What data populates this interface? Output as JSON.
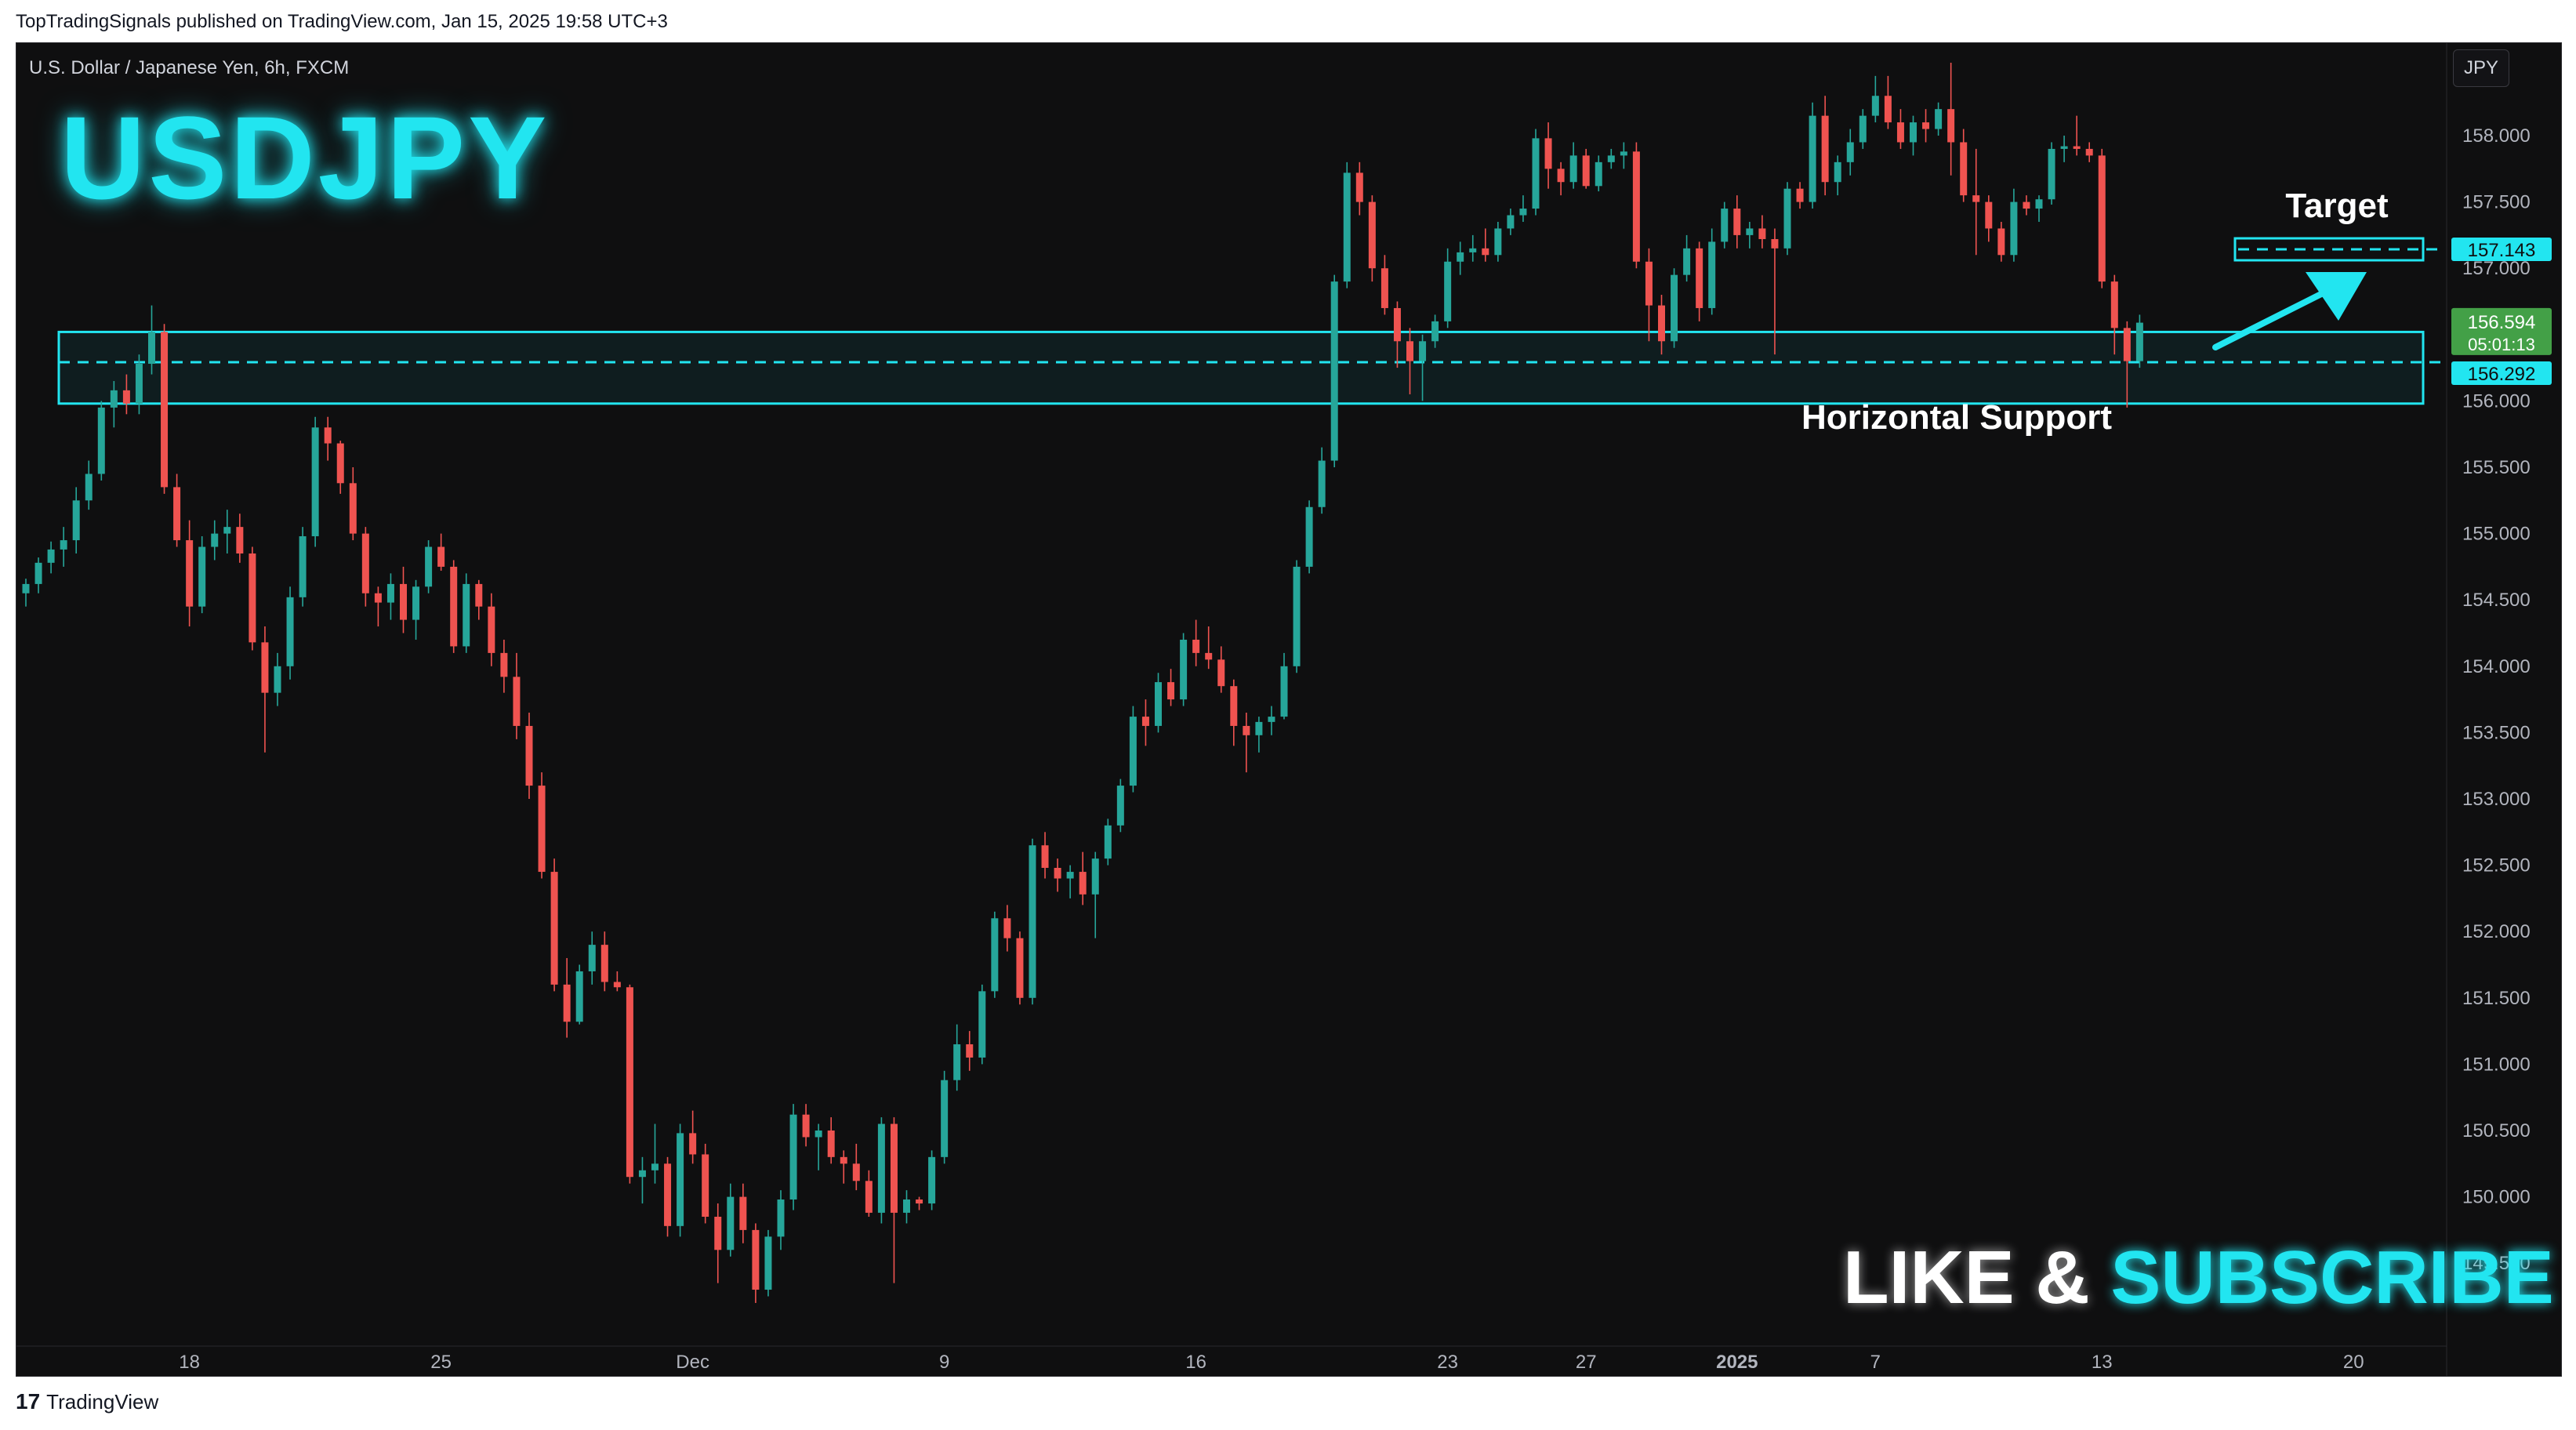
{
  "header": {
    "published_text": "TopTradingSignals published on TradingView.com, Jan 15, 2025 19:58 UTC+3"
  },
  "chart_header": {
    "symbol_line": "U.S. Dollar / Japanese Yen, 6h, FXCM",
    "currency_badge": "JPY",
    "big_title": "USDJPY"
  },
  "annotations": {
    "target_label": "Target",
    "support_label": "Horizontal Support",
    "like_text": "LIKE",
    "amp_text": "&",
    "subscribe_text": "SUBSCRIBE"
  },
  "price_tags": {
    "target_price": "157.143",
    "last_price": "156.594",
    "countdown": "05:01:13",
    "support_price": "156.292"
  },
  "footer": {
    "brand_logo": "17",
    "brand_name": "TradingView"
  },
  "colors": {
    "up": "#26a69a",
    "down": "#ef5350",
    "accent": "#22e5f0",
    "last_price_bg": "#43a047"
  },
  "chart_data": {
    "type": "candlestick",
    "symbol": "USDJPY",
    "timeframe": "6h",
    "ylim": [
      149.0,
      158.5
    ],
    "y_ticks": [
      "158.000",
      "157.500",
      "157.000",
      "156.500",
      "156.000",
      "155.500",
      "155.000",
      "154.500",
      "154.000",
      "153.500",
      "153.000",
      "152.500",
      "152.000",
      "151.500",
      "151.000",
      "150.500",
      "150.000",
      "149.500"
    ],
    "x_ticks": [
      {
        "label": "18",
        "bold": false,
        "index": 13
      },
      {
        "label": "25",
        "bold": false,
        "index": 33
      },
      {
        "label": "Dec",
        "bold": false,
        "index": 53
      },
      {
        "label": "9",
        "bold": false,
        "index": 73
      },
      {
        "label": "16",
        "bold": false,
        "index": 93
      },
      {
        "label": "23",
        "bold": false,
        "index": 113
      },
      {
        "label": "27",
        "bold": false,
        "index": 124
      },
      {
        "label": "2025",
        "bold": true,
        "index": 136
      },
      {
        "label": "7",
        "bold": false,
        "index": 147
      },
      {
        "label": "13",
        "bold": false,
        "index": 165
      },
      {
        "label": "20",
        "bold": false,
        "index": 185
      }
    ],
    "support_zone": [
      155.98,
      156.52
    ],
    "support_level": 156.292,
    "target_level": 157.143,
    "candles": [
      [
        154.55,
        154.66,
        154.45,
        154.62
      ],
      [
        154.62,
        154.82,
        154.55,
        154.78
      ],
      [
        154.78,
        154.94,
        154.7,
        154.88
      ],
      [
        154.88,
        155.05,
        154.75,
        154.95
      ],
      [
        154.95,
        155.35,
        154.85,
        155.25
      ],
      [
        155.25,
        155.55,
        155.18,
        155.45
      ],
      [
        155.45,
        156.0,
        155.4,
        155.95
      ],
      [
        155.95,
        156.15,
        155.8,
        156.08
      ],
      [
        156.08,
        156.2,
        155.9,
        155.98
      ],
      [
        155.98,
        156.35,
        155.9,
        156.28
      ],
      [
        156.28,
        156.72,
        156.2,
        156.52
      ],
      [
        156.52,
        156.58,
        155.3,
        155.35
      ],
      [
        155.35,
        155.45,
        154.9,
        154.95
      ],
      [
        154.95,
        155.1,
        154.3,
        154.45
      ],
      [
        154.45,
        154.98,
        154.4,
        154.9
      ],
      [
        154.9,
        155.1,
        154.8,
        155.0
      ],
      [
        155.0,
        155.18,
        154.85,
        155.05
      ],
      [
        155.05,
        155.15,
        154.78,
        154.85
      ],
      [
        154.85,
        154.9,
        154.12,
        154.18
      ],
      [
        154.18,
        154.3,
        153.35,
        153.8
      ],
      [
        153.8,
        154.1,
        153.7,
        154.0
      ],
      [
        154.0,
        154.6,
        153.9,
        154.52
      ],
      [
        154.52,
        155.05,
        154.45,
        154.98
      ],
      [
        154.98,
        155.88,
        154.9,
        155.8
      ],
      [
        155.8,
        155.88,
        155.55,
        155.68
      ],
      [
        155.68,
        155.7,
        155.3,
        155.38
      ],
      [
        155.38,
        155.5,
        154.95,
        155.0
      ],
      [
        155.0,
        155.05,
        154.45,
        154.55
      ],
      [
        154.55,
        154.6,
        154.3,
        154.48
      ],
      [
        154.48,
        154.7,
        154.35,
        154.62
      ],
      [
        154.62,
        154.75,
        154.25,
        154.35
      ],
      [
        154.35,
        154.65,
        154.2,
        154.6
      ],
      [
        154.6,
        154.95,
        154.55,
        154.9
      ],
      [
        154.9,
        155.0,
        154.72,
        154.75
      ],
      [
        154.75,
        154.8,
        154.1,
        154.15
      ],
      [
        154.15,
        154.7,
        154.1,
        154.62
      ],
      [
        154.62,
        154.65,
        154.35,
        154.45
      ],
      [
        154.45,
        154.55,
        154.0,
        154.1
      ],
      [
        154.1,
        154.2,
        153.8,
        153.92
      ],
      [
        153.92,
        154.1,
        153.45,
        153.55
      ],
      [
        153.55,
        153.65,
        153.0,
        153.1
      ],
      [
        153.1,
        153.2,
        152.4,
        152.45
      ],
      [
        152.45,
        152.55,
        151.55,
        151.6
      ],
      [
        151.6,
        151.8,
        151.2,
        151.32
      ],
      [
        151.32,
        151.75,
        151.3,
        151.7
      ],
      [
        151.7,
        152.0,
        151.6,
        151.9
      ],
      [
        151.9,
        152.0,
        151.55,
        151.62
      ],
      [
        151.62,
        151.7,
        151.55,
        151.58
      ],
      [
        151.58,
        151.6,
        150.1,
        150.15
      ],
      [
        150.15,
        150.3,
        149.95,
        150.2
      ],
      [
        150.2,
        150.55,
        150.1,
        150.25
      ],
      [
        150.25,
        150.3,
        149.7,
        149.78
      ],
      [
        149.78,
        150.55,
        149.7,
        150.48
      ],
      [
        150.48,
        150.65,
        150.25,
        150.32
      ],
      [
        150.32,
        150.4,
        149.8,
        149.85
      ],
      [
        149.85,
        149.95,
        149.35,
        149.6
      ],
      [
        149.6,
        150.1,
        149.55,
        150.0
      ],
      [
        150.0,
        150.1,
        149.65,
        149.75
      ],
      [
        149.75,
        149.8,
        149.2,
        149.3
      ],
      [
        149.3,
        149.75,
        149.25,
        149.7
      ],
      [
        149.7,
        150.05,
        149.6,
        149.98
      ],
      [
        149.98,
        150.7,
        149.9,
        150.62
      ],
      [
        150.62,
        150.7,
        150.38,
        150.45
      ],
      [
        150.45,
        150.55,
        150.2,
        150.5
      ],
      [
        150.5,
        150.6,
        150.25,
        150.3
      ],
      [
        150.3,
        150.35,
        150.1,
        150.25
      ],
      [
        150.25,
        150.4,
        150.05,
        150.12
      ],
      [
        150.12,
        150.2,
        149.85,
        149.88
      ],
      [
        149.88,
        150.6,
        149.8,
        150.55
      ],
      [
        150.55,
        150.6,
        149.35,
        149.88
      ],
      [
        149.88,
        150.05,
        149.8,
        149.98
      ],
      [
        149.98,
        150.0,
        149.9,
        149.95
      ],
      [
        149.95,
        150.35,
        149.9,
        150.3
      ],
      [
        150.3,
        150.95,
        150.25,
        150.88
      ],
      [
        150.88,
        151.3,
        150.8,
        151.15
      ],
      [
        151.15,
        151.25,
        150.95,
        151.05
      ],
      [
        151.05,
        151.6,
        151.0,
        151.55
      ],
      [
        151.55,
        152.15,
        151.5,
        152.1
      ],
      [
        152.1,
        152.2,
        151.85,
        151.95
      ],
      [
        151.95,
        152.0,
        151.45,
        151.5
      ],
      [
        151.5,
        152.7,
        151.45,
        152.65
      ],
      [
        152.65,
        152.75,
        152.4,
        152.48
      ],
      [
        152.48,
        152.55,
        152.3,
        152.4
      ],
      [
        152.4,
        152.5,
        152.25,
        152.45
      ],
      [
        152.45,
        152.6,
        152.2,
        152.28
      ],
      [
        152.28,
        152.6,
        151.95,
        152.55
      ],
      [
        152.55,
        152.85,
        152.5,
        152.8
      ],
      [
        152.8,
        153.15,
        152.75,
        153.1
      ],
      [
        153.1,
        153.7,
        153.05,
        153.62
      ],
      [
        153.62,
        153.75,
        153.4,
        153.55
      ],
      [
        153.55,
        153.95,
        153.5,
        153.88
      ],
      [
        153.88,
        153.98,
        153.7,
        153.75
      ],
      [
        153.75,
        154.25,
        153.7,
        154.2
      ],
      [
        154.2,
        154.35,
        154.0,
        154.1
      ],
      [
        154.1,
        154.3,
        153.98,
        154.05
      ],
      [
        154.05,
        154.15,
        153.8,
        153.85
      ],
      [
        153.85,
        153.9,
        153.4,
        153.55
      ],
      [
        153.55,
        153.65,
        153.2,
        153.48
      ],
      [
        153.48,
        153.62,
        153.35,
        153.58
      ],
      [
        153.58,
        153.7,
        153.48,
        153.62
      ],
      [
        153.62,
        154.1,
        153.6,
        154.0
      ],
      [
        154.0,
        154.8,
        153.95,
        154.75
      ],
      [
        154.75,
        155.25,
        154.7,
        155.2
      ],
      [
        155.2,
        155.65,
        155.15,
        155.55
      ],
      [
        155.55,
        156.95,
        155.5,
        156.9
      ],
      [
        156.9,
        157.8,
        156.85,
        157.72
      ],
      [
        157.72,
        157.8,
        157.4,
        157.5
      ],
      [
        157.5,
        157.55,
        156.9,
        157.0
      ],
      [
        157.0,
        157.1,
        156.65,
        156.7
      ],
      [
        156.7,
        156.75,
        156.25,
        156.45
      ],
      [
        156.45,
        156.55,
        156.05,
        156.3
      ],
      [
        156.3,
        156.5,
        156.0,
        156.45
      ],
      [
        156.45,
        156.65,
        156.4,
        156.6
      ],
      [
        156.6,
        157.15,
        156.55,
        157.05
      ],
      [
        157.05,
        157.2,
        156.95,
        157.12
      ],
      [
        157.12,
        157.25,
        157.05,
        157.15
      ],
      [
        157.15,
        157.3,
        157.05,
        157.1
      ],
      [
        157.1,
        157.35,
        157.05,
        157.3
      ],
      [
        157.3,
        157.45,
        157.25,
        157.4
      ],
      [
        157.4,
        157.55,
        157.35,
        157.45
      ],
      [
        157.45,
        158.05,
        157.4,
        157.98
      ],
      [
        157.98,
        158.1,
        157.6,
        157.75
      ],
      [
        157.75,
        157.8,
        157.55,
        157.65
      ],
      [
        157.65,
        157.95,
        157.6,
        157.85
      ],
      [
        157.85,
        157.9,
        157.6,
        157.62
      ],
      [
        157.62,
        157.85,
        157.58,
        157.8
      ],
      [
        157.8,
        157.9,
        157.75,
        157.85
      ],
      [
        157.85,
        157.95,
        157.75,
        157.88
      ],
      [
        157.88,
        157.95,
        157.0,
        157.05
      ],
      [
        157.05,
        157.15,
        156.45,
        156.72
      ],
      [
        156.72,
        156.8,
        156.35,
        156.45
      ],
      [
        156.45,
        157.0,
        156.4,
        156.95
      ],
      [
        156.95,
        157.25,
        156.9,
        157.15
      ],
      [
        157.15,
        157.2,
        156.6,
        156.7
      ],
      [
        156.7,
        157.3,
        156.65,
        157.2
      ],
      [
        157.2,
        157.5,
        157.15,
        157.45
      ],
      [
        157.45,
        157.55,
        157.15,
        157.25
      ],
      [
        157.25,
        157.35,
        157.15,
        157.3
      ],
      [
        157.3,
        157.4,
        157.15,
        157.22
      ],
      [
        157.22,
        157.3,
        156.35,
        157.15
      ],
      [
        157.15,
        157.65,
        157.1,
        157.6
      ],
      [
        157.6,
        157.65,
        157.45,
        157.5
      ],
      [
        157.5,
        158.25,
        157.45,
        158.15
      ],
      [
        158.15,
        158.3,
        157.55,
        157.65
      ],
      [
        157.65,
        157.85,
        157.55,
        157.8
      ],
      [
        157.8,
        158.05,
        157.7,
        157.95
      ],
      [
        157.95,
        158.2,
        157.9,
        158.15
      ],
      [
        158.15,
        158.45,
        158.1,
        158.3
      ],
      [
        158.3,
        158.45,
        158.05,
        158.1
      ],
      [
        158.1,
        158.2,
        157.9,
        157.95
      ],
      [
        157.95,
        158.15,
        157.85,
        158.1
      ],
      [
        158.1,
        158.2,
        157.95,
        158.05
      ],
      [
        158.05,
        158.25,
        158.0,
        158.2
      ],
      [
        158.2,
        158.55,
        157.7,
        157.95
      ],
      [
        157.95,
        158.05,
        157.5,
        157.55
      ],
      [
        157.55,
        157.9,
        157.1,
        157.5
      ],
      [
        157.5,
        157.55,
        157.2,
        157.3
      ],
      [
        157.3,
        157.35,
        157.05,
        157.1
      ],
      [
        157.1,
        157.6,
        157.05,
        157.5
      ],
      [
        157.5,
        157.55,
        157.4,
        157.45
      ],
      [
        157.45,
        157.55,
        157.35,
        157.52
      ],
      [
        157.52,
        157.95,
        157.48,
        157.9
      ],
      [
        157.9,
        158.0,
        157.8,
        157.92
      ],
      [
        157.92,
        158.15,
        157.85,
        157.9
      ],
      [
        157.9,
        157.95,
        157.8,
        157.85
      ],
      [
        157.85,
        157.9,
        156.85,
        156.9
      ],
      [
        156.9,
        156.95,
        156.35,
        156.55
      ],
      [
        156.55,
        156.6,
        155.95,
        156.3
      ],
      [
        156.3,
        156.65,
        156.25,
        156.59
      ]
    ]
  }
}
